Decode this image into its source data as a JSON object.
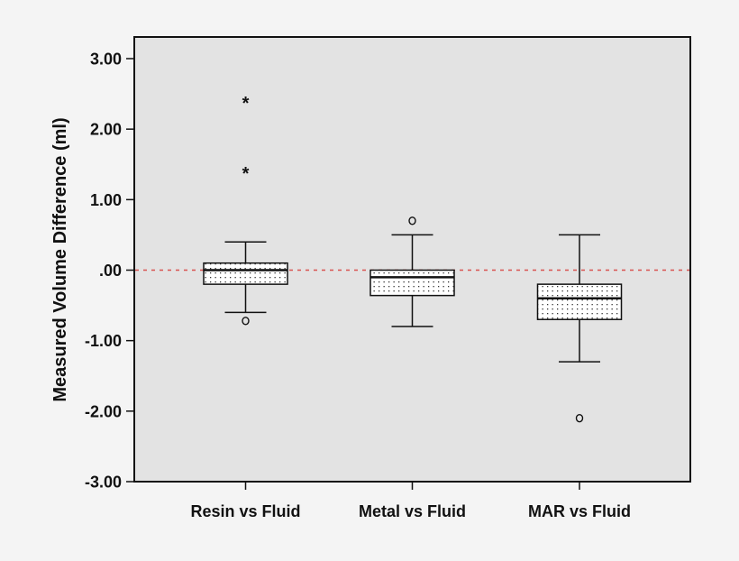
{
  "chart_data": {
    "type": "boxplot",
    "title": "",
    "xlabel": "",
    "ylabel": "Measured Volume Difference (ml)",
    "ylim": [
      -3.0,
      3.0
    ],
    "yticks": [
      3.0,
      2.0,
      1.0,
      0.0,
      -1.0,
      -2.0,
      -3.0
    ],
    "ytick_labels": [
      "3.00",
      "2.00",
      "1.00",
      ".00",
      "-1.00",
      "-2.00",
      "-3.00"
    ],
    "categories": [
      "Resin vs Fluid",
      "Metal vs Fluid",
      "MAR vs Fluid"
    ],
    "grid": false,
    "legend": null,
    "reference_line": {
      "y": 0.0,
      "style": "dotted",
      "color": "#d9534f"
    },
    "series": [
      {
        "name": "Resin vs Fluid",
        "whisker_low": -0.6,
        "q1": -0.2,
        "median": 0.0,
        "q3": 0.1,
        "whisker_high": 0.4,
        "outliers": [
          -0.72
        ],
        "extremes": [
          1.4,
          2.4
        ]
      },
      {
        "name": "Metal vs Fluid",
        "whisker_low": -0.8,
        "q1": -0.36,
        "median": -0.1,
        "q3": 0.0,
        "whisker_high": 0.5,
        "outliers": [
          0.7
        ],
        "extremes": []
      },
      {
        "name": "MAR vs Fluid",
        "whisker_low": -1.3,
        "q1": -0.7,
        "median": -0.4,
        "q3": -0.2,
        "whisker_high": 0.5,
        "outliers": [
          -2.1
        ],
        "extremes": []
      }
    ]
  },
  "colors": {
    "page_background": "#f4f4f4",
    "plot_background": "#e3e3e3",
    "box_fill": "#ffffff",
    "stroke": "#111111",
    "reference_line": "#d9534f"
  }
}
